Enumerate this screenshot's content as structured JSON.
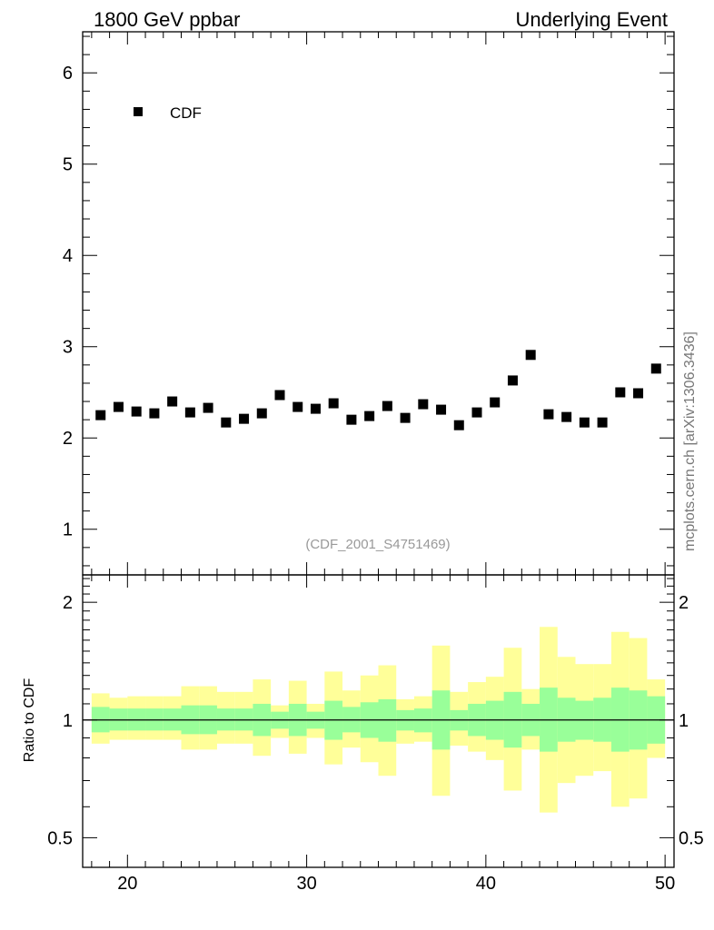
{
  "header": {
    "left_title": "1800 GeV ppbar",
    "right_title": "Underlying Event"
  },
  "watermark": "(CDF_2001_S4751469)",
  "side_label": "mcplots.cern.ch [arXiv:1306.3436]",
  "chart_data": [
    {
      "type": "scatter",
      "title": "",
      "xlabel": "",
      "ylabel": "",
      "xlim": [
        17.5,
        50.5
      ],
      "ylim": [
        0.5,
        6.45
      ],
      "x_ticks": [
        20,
        30,
        40,
        50
      ],
      "y_ticks": [
        1,
        2,
        3,
        4,
        5,
        6
      ],
      "legend": {
        "placement": "top-left",
        "entries": [
          "CDF"
        ]
      },
      "series": [
        {
          "name": "CDF",
          "color": "#000000",
          "x": [
            18.5,
            19.5,
            20.5,
            21.5,
            22.5,
            23.5,
            24.5,
            25.5,
            26.5,
            27.5,
            28.5,
            29.5,
            30.5,
            31.5,
            32.5,
            33.5,
            34.5,
            35.5,
            36.5,
            37.5,
            38.5,
            39.5,
            40.5,
            41.5,
            42.5,
            43.5,
            44.5,
            45.5,
            46.5,
            47.5,
            48.5,
            49.5
          ],
          "y": [
            2.25,
            2.34,
            2.29,
            2.27,
            2.4,
            2.28,
            2.33,
            2.17,
            2.21,
            2.27,
            2.47,
            2.34,
            2.32,
            2.38,
            2.2,
            2.24,
            2.35,
            2.22,
            2.37,
            2.31,
            2.14,
            2.28,
            2.39,
            2.63,
            2.91,
            2.26,
            2.23,
            2.17,
            2.17,
            2.5,
            2.49,
            2.76
          ]
        }
      ]
    },
    {
      "type": "area",
      "title": "",
      "xlabel": "",
      "ylabel": "Ratio to CDF",
      "xlim": [
        17.5,
        50.5
      ],
      "ylim": [
        0.42,
        2.35
      ],
      "log_y": true,
      "x_ticks": [
        20,
        30,
        40,
        50
      ],
      "y_ticks": [
        0.5,
        1,
        2
      ],
      "reference_line": 1,
      "bins": [
        18,
        19,
        20,
        21,
        22,
        23,
        24,
        25,
        26,
        27,
        28,
        29,
        30,
        31,
        32,
        33,
        34,
        35,
        36,
        37,
        38,
        39,
        40,
        41,
        42,
        43,
        44,
        45,
        46,
        47,
        48,
        49,
        50
      ],
      "bands": [
        {
          "label": "inner",
          "color": "#99ff99",
          "lo": [
            0.93,
            0.94,
            0.94,
            0.94,
            0.94,
            0.92,
            0.92,
            0.94,
            0.94,
            0.91,
            0.95,
            0.91,
            0.95,
            0.89,
            0.93,
            0.9,
            0.88,
            0.94,
            0.93,
            0.84,
            0.94,
            0.91,
            0.89,
            0.85,
            0.91,
            0.83,
            0.88,
            0.89,
            0.88,
            0.83,
            0.84,
            0.87
          ],
          "hi": [
            1.08,
            1.07,
            1.07,
            1.07,
            1.07,
            1.09,
            1.09,
            1.07,
            1.07,
            1.1,
            1.05,
            1.1,
            1.05,
            1.12,
            1.08,
            1.11,
            1.13,
            1.06,
            1.07,
            1.19,
            1.06,
            1.1,
            1.12,
            1.18,
            1.1,
            1.21,
            1.14,
            1.12,
            1.14,
            1.21,
            1.19,
            1.15
          ]
        },
        {
          "label": "outer",
          "color": "#ffff99",
          "lo": [
            0.87,
            0.89,
            0.89,
            0.89,
            0.89,
            0.84,
            0.84,
            0.87,
            0.87,
            0.81,
            0.9,
            0.82,
            0.9,
            0.77,
            0.85,
            0.78,
            0.72,
            0.87,
            0.88,
            0.64,
            0.86,
            0.83,
            0.79,
            0.66,
            0.84,
            0.58,
            0.69,
            0.72,
            0.74,
            0.6,
            0.63,
            0.8
          ],
          "hi": [
            1.17,
            1.14,
            1.15,
            1.15,
            1.15,
            1.22,
            1.22,
            1.18,
            1.18,
            1.27,
            1.09,
            1.26,
            1.1,
            1.33,
            1.19,
            1.3,
            1.38,
            1.13,
            1.15,
            1.55,
            1.18,
            1.25,
            1.29,
            1.53,
            1.2,
            1.73,
            1.45,
            1.39,
            1.39,
            1.68,
            1.62,
            1.27
          ]
        }
      ]
    }
  ]
}
